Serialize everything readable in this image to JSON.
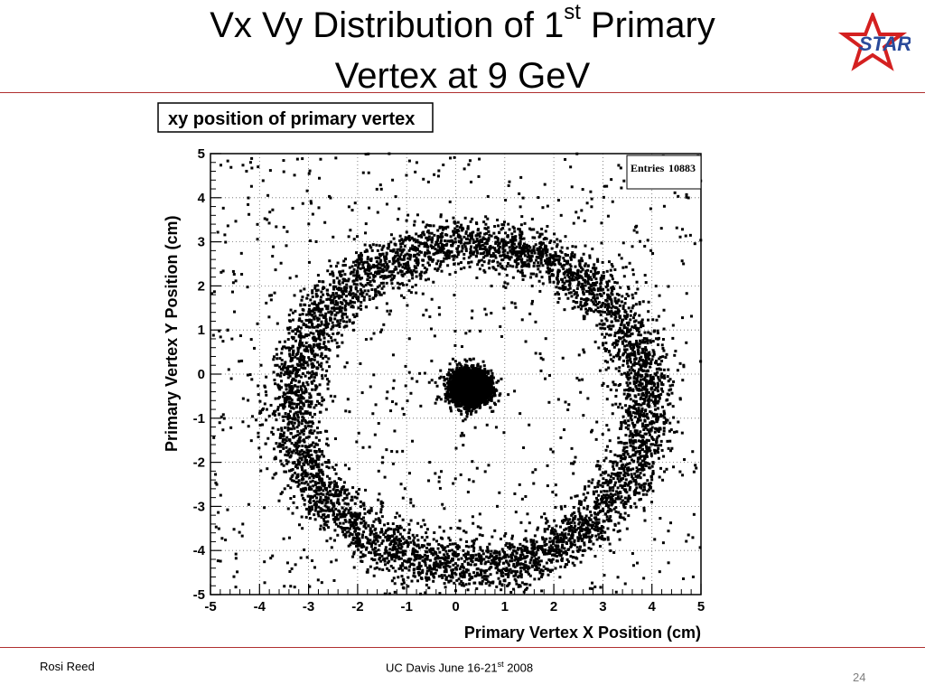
{
  "slide": {
    "title_line1_pre": "Vx Vy Distribution of 1",
    "title_line1_sup": "st",
    "title_line1_post": " Primary",
    "title_line2": "Vertex at 9 GeV",
    "logo_text": "STAR",
    "footer_left": "Rosi Reed",
    "footer_center_pre": "UC Davis June 16-21",
    "footer_center_sup": "st",
    "footer_center_post": " 2008",
    "page_number": "24",
    "accent_color": "#b03030",
    "logo_colors": {
      "star": "#d42020",
      "text": "#2a4a9a"
    }
  },
  "chart_data": {
    "type": "scatter",
    "title": "xy position of primary vertex",
    "xlabel": "Primary Vertex X Position (cm)",
    "ylabel": "Primary Vertex Y Position (cm)",
    "xlim": [
      -5,
      5
    ],
    "ylim": [
      -5,
      5
    ],
    "xticks": [
      "-5",
      "-4",
      "-3",
      "-2",
      "-1",
      "0",
      "1",
      "2",
      "3",
      "4",
      "5"
    ],
    "yticks": [
      "-5",
      "-4",
      "-3",
      "-2",
      "-1",
      "0",
      "1",
      "2",
      "3",
      "4",
      "5"
    ],
    "grid": true,
    "stats": {
      "label": "Entries",
      "value": "10883"
    },
    "series": [
      {
        "component": "beam-spot",
        "center": [
          0.3,
          -0.3
        ],
        "spread": [
          0.3,
          0.3
        ],
        "approx_points": 4500
      },
      {
        "component": "beam-pipe-ring",
        "center": [
          0.3,
          -0.7
        ],
        "radius": 3.6,
        "approx_points": 5500
      },
      {
        "component": "background",
        "approx_points": 880
      }
    ]
  }
}
